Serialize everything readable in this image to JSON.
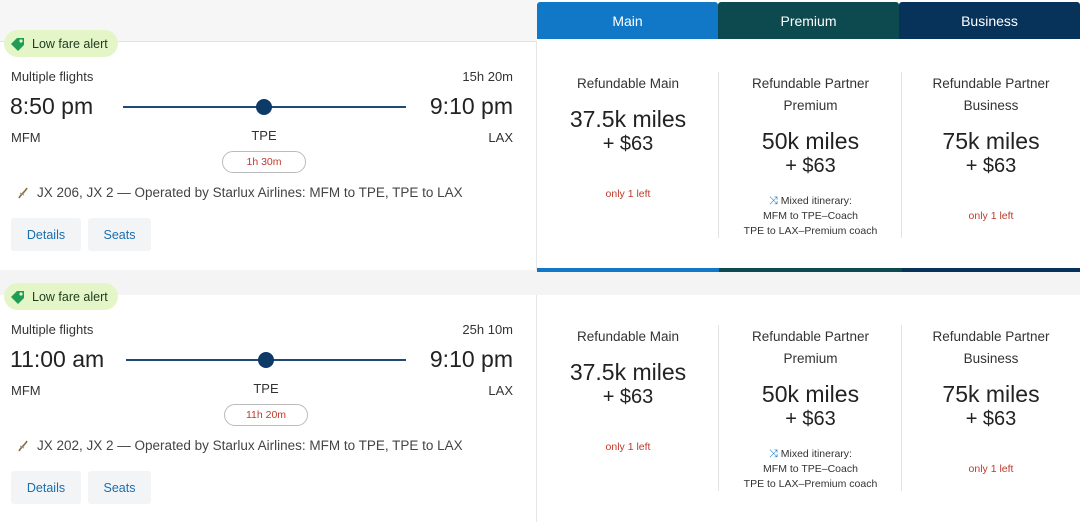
{
  "cabins": {
    "main": "Main",
    "premium": "Premium",
    "business": "Business"
  },
  "flights": [
    {
      "alert": "Low fare alert",
      "multi": "Multiple flights",
      "duration": "15h 20m",
      "dep_time": "8:50 pm",
      "arr_time": "9:10 pm",
      "dep_code": "MFM",
      "stop_code": "TPE",
      "arr_code": "LAX",
      "layover": "1h 30m",
      "info": "JX 206, JX 2 — Operated by Starlux Airlines: MFM to TPE, TPE to LAX",
      "details_label": "Details",
      "seats_label": "Seats",
      "fares": {
        "main": {
          "name": "Refundable Main",
          "miles": "37.5k miles",
          "tax": "+ $63",
          "note": "only 1 left"
        },
        "premium": {
          "name_l1": "Refundable Partner",
          "name_l2": "Premium",
          "miles": "50k miles",
          "tax": "+ $63",
          "mixed_title": "Mixed itinerary:",
          "mixed_l1": "MFM to TPE–Coach",
          "mixed_l2": "TPE to LAX–Premium coach"
        },
        "business": {
          "name_l1": "Refundable Partner",
          "name_l2": "Business",
          "miles": "75k miles",
          "tax": "+ $63",
          "note": "only 1 left"
        }
      }
    },
    {
      "alert": "Low fare alert",
      "multi": "Multiple flights",
      "duration": "25h 10m",
      "dep_time": "11:00 am",
      "arr_time": "9:10 pm",
      "dep_code": "MFM",
      "stop_code": "TPE",
      "arr_code": "LAX",
      "layover": "11h 20m",
      "info": "JX 202, JX 2 — Operated by Starlux Airlines: MFM to TPE, TPE to LAX",
      "details_label": "Details",
      "seats_label": "Seats",
      "fares": {
        "main": {
          "name": "Refundable Main",
          "miles": "37.5k miles",
          "tax": "+ $63",
          "note": "only 1 left"
        },
        "premium": {
          "name_l1": "Refundable Partner",
          "name_l2": "Premium",
          "miles": "50k miles",
          "tax": "+ $63",
          "mixed_title": "Mixed itinerary:",
          "mixed_l1": "MFM to TPE–Coach",
          "mixed_l2": "TPE to LAX–Premium coach"
        },
        "business": {
          "name_l1": "Refundable Partner",
          "name_l2": "Business",
          "miles": "75k miles",
          "tax": "+ $63",
          "note": "only 1 left"
        }
      }
    }
  ],
  "colors": {
    "main": "#1177c7",
    "premium": "#0c4a4f",
    "business": "#07335b",
    "alert_bg": "#e4f6c8",
    "warning": "#c0392b"
  }
}
